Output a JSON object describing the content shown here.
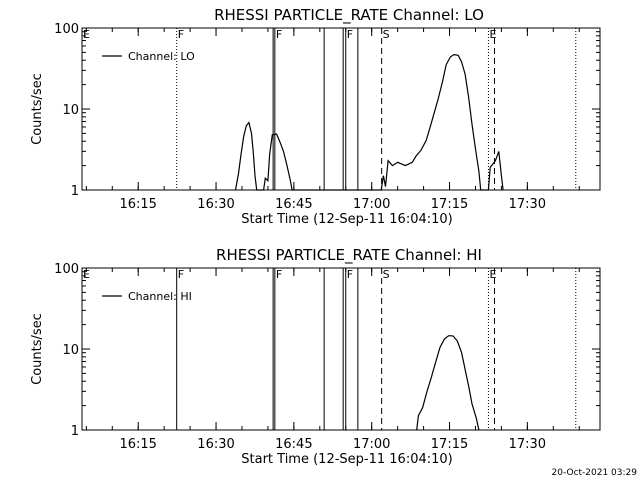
{
  "footer": {
    "timestamp": "20-Oct-2021 03:29"
  },
  "chart_data": [
    {
      "type": "line",
      "title": "RHESSI PARTICLE_RATE Channel: LO",
      "xlabel": "Start Time (12-Sep-11 16:04:10)",
      "ylabel": "Counts/sec",
      "yscale": "log",
      "ylim": [
        1,
        100
      ],
      "xlim": [
        "16:04:10",
        "17:44:00"
      ],
      "xticks": [
        "16:15",
        "16:30",
        "16:45",
        "17:00",
        "17:15",
        "17:30"
      ],
      "yticks": [
        "1",
        "10",
        "100"
      ],
      "legend": {
        "position": "top-left",
        "entries": [
          "Channel: LO"
        ]
      },
      "series": [
        {
          "name": "Channel: LO",
          "points": [
            [
              "16:33:45",
              1.0
            ],
            [
              "16:34:20",
              1.6
            ],
            [
              "16:34:50",
              2.8
            ],
            [
              "16:35:20",
              4.6
            ],
            [
              "16:35:50",
              6.2
            ],
            [
              "16:36:20",
              6.8
            ],
            [
              "16:36:50",
              5.0
            ],
            [
              "16:37:10",
              3.0
            ],
            [
              "16:37:30",
              1.5
            ],
            [
              "16:37:50",
              1.0
            ],
            [
              "16:39:10",
              1.0
            ],
            [
              "16:39:30",
              1.4
            ],
            [
              "16:40:00",
              1.3
            ],
            [
              "16:40:20",
              2.8
            ],
            [
              "16:40:50",
              4.8
            ],
            [
              "16:41:40",
              4.9
            ],
            [
              "16:42:20",
              3.9
            ],
            [
              "16:43:00",
              3.0
            ],
            [
              "16:43:40",
              2.0
            ],
            [
              "16:44:20",
              1.3
            ],
            [
              "16:44:40",
              1.0
            ],
            [
              "17:01:50",
              1.0
            ],
            [
              "17:02:15",
              1.5
            ],
            [
              "17:02:40",
              1.1
            ],
            [
              "17:03:10",
              2.3
            ],
            [
              "17:04:00",
              2.0
            ],
            [
              "17:05:00",
              2.2
            ],
            [
              "17:06:30",
              2.0
            ],
            [
              "17:07:50",
              2.2
            ],
            [
              "17:08:30",
              2.6
            ],
            [
              "17:09:30",
              3.1
            ],
            [
              "17:10:30",
              4.1
            ],
            [
              "17:11:20",
              6.2
            ],
            [
              "17:12:10",
              9.5
            ],
            [
              "17:12:50",
              13.5
            ],
            [
              "17:13:40",
              22
            ],
            [
              "17:14:20",
              35
            ],
            [
              "17:15:10",
              44
            ],
            [
              "17:15:50",
              47
            ],
            [
              "17:16:40",
              46
            ],
            [
              "17:17:20",
              38
            ],
            [
              "17:18:00",
              27
            ],
            [
              "17:18:40",
              14
            ],
            [
              "17:19:20",
              6.5
            ],
            [
              "17:20:00",
              3.2
            ],
            [
              "17:20:40",
              1.7
            ],
            [
              "17:21:00",
              1.0
            ],
            [
              "17:22:30",
              1.0
            ],
            [
              "17:22:50",
              1.9
            ],
            [
              "17:23:50",
              2.3
            ],
            [
              "17:24:30",
              3.0
            ],
            [
              "17:25:00",
              1.5
            ],
            [
              "17:25:20",
              1.0
            ]
          ]
        }
      ],
      "markers": [
        {
          "label": "E",
          "time": "16:04:10",
          "style": "none"
        },
        {
          "label": "F",
          "time": "16:22:25",
          "style": "dotted"
        },
        {
          "label": "",
          "time": "16:41:00",
          "style": "solid"
        },
        {
          "label": "F",
          "time": "16:41:20",
          "style": "solid"
        },
        {
          "label": "",
          "time": "16:50:50",
          "style": "solid"
        },
        {
          "label": "",
          "time": "16:54:30",
          "style": "solid"
        },
        {
          "label": "F",
          "time": "16:55:00",
          "style": "solid"
        },
        {
          "label": "",
          "time": "16:57:20",
          "style": "solid"
        },
        {
          "label": "S",
          "time": "17:01:55",
          "style": "dashed"
        },
        {
          "label": "E",
          "time": "17:22:30",
          "style": "dotted"
        },
        {
          "label": "",
          "time": "17:23:40",
          "style": "dashed"
        },
        {
          "label": "",
          "time": "17:39:20",
          "style": "dotted"
        }
      ]
    },
    {
      "type": "line",
      "title": "RHESSI PARTICLE_RATE Channel: HI",
      "xlabel": "Start Time (12-Sep-11 16:04:10)",
      "ylabel": "Counts/sec",
      "yscale": "log",
      "ylim": [
        1,
        100
      ],
      "xlim": [
        "16:04:10",
        "17:44:00"
      ],
      "xticks": [
        "16:15",
        "16:30",
        "16:45",
        "17:00",
        "17:15",
        "17:30"
      ],
      "yticks": [
        "1",
        "10",
        "100"
      ],
      "legend": {
        "position": "top-left",
        "entries": [
          "Channel: HI"
        ]
      },
      "series": [
        {
          "name": "Channel: HI",
          "points": [
            [
              "17:08:40",
              1.0
            ],
            [
              "17:09:00",
              1.5
            ],
            [
              "17:09:50",
              1.9
            ],
            [
              "17:10:40",
              3.0
            ],
            [
              "17:11:30",
              4.5
            ],
            [
              "17:12:20",
              6.9
            ],
            [
              "17:13:10",
              10.5
            ],
            [
              "17:14:00",
              13.2
            ],
            [
              "17:14:50",
              14.6
            ],
            [
              "17:15:40",
              14.5
            ],
            [
              "17:16:30",
              12.6
            ],
            [
              "17:17:20",
              9.0
            ],
            [
              "17:18:00",
              5.6
            ],
            [
              "17:18:40",
              3.5
            ],
            [
              "17:19:20",
              2.1
            ],
            [
              "17:20:10",
              1.4
            ],
            [
              "17:20:40",
              1.0
            ]
          ]
        }
      ],
      "markers": [
        {
          "label": "E",
          "time": "16:04:10",
          "style": "none"
        },
        {
          "label": "F",
          "time": "16:22:25",
          "style": "solid"
        },
        {
          "label": "",
          "time": "16:41:00",
          "style": "solid"
        },
        {
          "label": "F",
          "time": "16:41:20",
          "style": "solid"
        },
        {
          "label": "",
          "time": "16:50:50",
          "style": "solid"
        },
        {
          "label": "",
          "time": "16:54:30",
          "style": "solid"
        },
        {
          "label": "F",
          "time": "16:55:00",
          "style": "solid"
        },
        {
          "label": "",
          "time": "16:57:20",
          "style": "solid"
        },
        {
          "label": "S",
          "time": "17:01:55",
          "style": "dashed"
        },
        {
          "label": "E",
          "time": "17:22:30",
          "style": "dotted"
        },
        {
          "label": "",
          "time": "17:23:40",
          "style": "dashed"
        },
        {
          "label": "",
          "time": "17:39:20",
          "style": "dotted"
        }
      ]
    }
  ]
}
